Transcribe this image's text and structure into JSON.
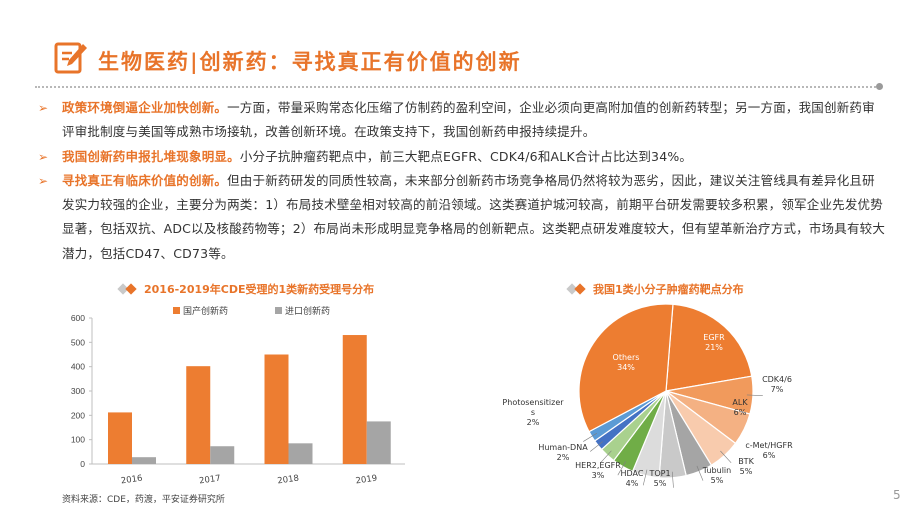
{
  "header": {
    "title": "生物医药|创新药：寻找真正有价值的创新"
  },
  "bullets": [
    {
      "lead": "政策环境倒逼企业加快创新。",
      "text": "一方面，带量采购常态化压缩了仿制药的盈利空间，企业必须向更高附加值的创新药转型；另一方面，我国创新药审评审批制度与美国等成熟市场接轨，改善创新环境。在政策支持下，我国创新药申报持续提升。"
    },
    {
      "lead": "我国创新药申报扎堆现象明显。",
      "text": "小分子抗肿瘤药靶点中，前三大靶点EGFR、CDK4/6和ALK合计占比达到34%。"
    },
    {
      "lead": "寻找真正有临床价值的创新。",
      "text": "但由于新药研发的同质性较高，未来部分创新药市场竞争格局仍然将较为恶劣，因此，建议关注管线具有差异化且研发实力较强的企业，主要分为两类：1）布局技术壁垒相对较高的前沿领域。这类赛道护城河较高，前期平台研发需要较多积累，领军企业先发优势显著，包括双抗、ADC以及核酸药物等；2）布局尚未形成明显竞争格局的创新靶点。这类靶点研发难度较大，但有望革新治疗方式，市场具有较大潜力，包括CD47、CD73等。"
    }
  ],
  "left_chart_title": "2016-2019年CDE受理的1类新药受理号分布",
  "right_chart_title": "我国1类小分子肿瘤药靶点分布",
  "source": "资料来源：CDE，药渡，平安证券研究所",
  "page_number": "5",
  "colors": {
    "accent": "#e8742a",
    "domestic": "#ed7d31",
    "imported": "#a5a5a5"
  },
  "chart_data": [
    {
      "type": "bar",
      "title": "2016-2019年CDE受理的1类新药受理号分布",
      "categories": [
        "2016",
        "2017",
        "2018",
        "2019"
      ],
      "series": [
        {
          "name": "国产创新药",
          "values": [
            212,
            402,
            450,
            530
          ],
          "color": "#ed7d31"
        },
        {
          "name": "进口创新药",
          "values": [
            28,
            73,
            85,
            175
          ],
          "color": "#a5a5a5"
        }
      ],
      "ylim": [
        0,
        600
      ],
      "yticks": [
        "0",
        "100",
        "200",
        "300",
        "400",
        "500",
        "600"
      ],
      "legend": "top",
      "grid": false
    },
    {
      "type": "pie",
      "title": "我国1类小分子肿瘤药靶点分布",
      "slices": [
        {
          "name": "EGFR",
          "value": 21,
          "label": "21%",
          "color": "#ed7d31"
        },
        {
          "name": "CDK4/6",
          "value": 7,
          "label": "7%",
          "color": "#f19a5c"
        },
        {
          "name": "ALK",
          "value": 6,
          "label": "6%",
          "color": "#f4b183"
        },
        {
          "name": "c-Met/HGFR",
          "value": 6,
          "label": "6%",
          "color": "#f8cbad"
        },
        {
          "name": "BTK",
          "value": 5,
          "label": "5%",
          "color": "#a5a5a5"
        },
        {
          "name": "Tubulin",
          "value": 5,
          "label": "5%",
          "color": "#c9c9c9"
        },
        {
          "name": "TOP1",
          "value": 5,
          "label": "5%",
          "color": "#dcdcdc"
        },
        {
          "name": "HDAC",
          "value": 4,
          "label": "4%",
          "color": "#70ad47"
        },
        {
          "name": "HER2,EGFR",
          "value": 3,
          "label": "3%",
          "color": "#a9d18e"
        },
        {
          "name": "Human-DNA",
          "value": 2,
          "label": "2%",
          "color": "#4472c4"
        },
        {
          "name": "Photosensitizers",
          "value": 2,
          "label": "2%",
          "color": "#5b9bd5"
        },
        {
          "name": "Others",
          "value": 34,
          "label": "34%",
          "color": "#ed7d31"
        }
      ]
    }
  ]
}
